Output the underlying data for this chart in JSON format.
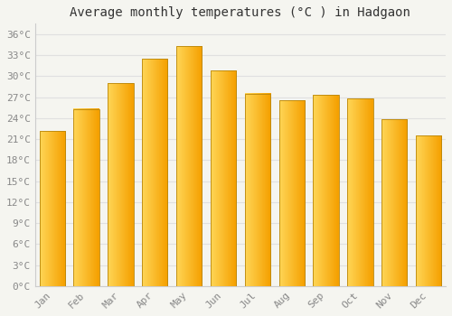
{
  "title": "Average monthly temperatures (°C ) in Hadgaon",
  "months": [
    "Jan",
    "Feb",
    "Mar",
    "Apr",
    "May",
    "Jun",
    "Jul",
    "Aug",
    "Sep",
    "Oct",
    "Nov",
    "Dec"
  ],
  "temperatures": [
    22.2,
    25.3,
    29.0,
    32.5,
    34.3,
    30.8,
    27.5,
    26.5,
    27.3,
    26.8,
    23.8,
    21.5
  ],
  "bar_color_left": "#FFD555",
  "bar_color_right": "#F5A000",
  "bar_border_color": "#B8860B",
  "background_color": "#F5F5F0",
  "grid_color": "#E0E0E0",
  "ytick_labels": [
    "0°C",
    "3°C",
    "6°C",
    "9°C",
    "12°C",
    "15°C",
    "18°C",
    "21°C",
    "24°C",
    "27°C",
    "30°C",
    "33°C",
    "36°C"
  ],
  "ytick_values": [
    0,
    3,
    6,
    9,
    12,
    15,
    18,
    21,
    24,
    27,
    30,
    33,
    36
  ],
  "ylim": [
    0,
    37.5
  ],
  "title_fontsize": 10,
  "tick_fontsize": 8,
  "tick_font_color": "#888888",
  "font_family": "monospace"
}
